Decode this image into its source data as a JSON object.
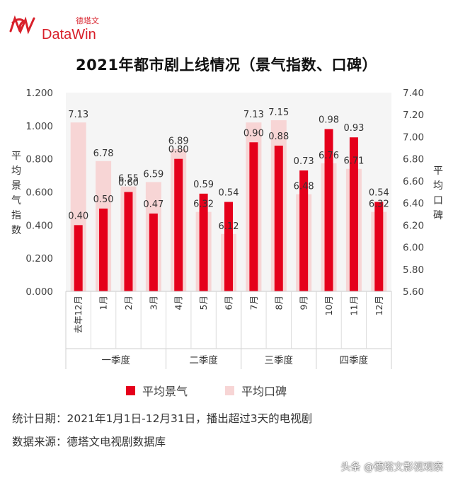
{
  "brand": {
    "cn": "德塔文",
    "en": "DataWin",
    "color": "#d8202a"
  },
  "title": "2021年都市剧上线情况（景气指数、口碑）",
  "chart_data": {
    "type": "bar",
    "categories": [
      "去年12月",
      "1月",
      "2月",
      "3月",
      "4月",
      "5月",
      "6月",
      "7月",
      "8月",
      "9月",
      "10月",
      "11月",
      "12月"
    ],
    "series": [
      {
        "name": "平均景气",
        "axis": "left",
        "color": "#e5001b",
        "values": [
          0.4,
          0.5,
          0.6,
          0.47,
          0.8,
          0.59,
          0.54,
          0.9,
          0.88,
          0.73,
          0.98,
          0.93,
          0.54
        ],
        "labels": [
          "0.40",
          "0.50",
          "0.60",
          "0.47",
          "0.80",
          "0.59",
          "0.54",
          "0.90",
          "0.88",
          "0.73",
          "0.98",
          "0.93",
          "0.54"
        ]
      },
      {
        "name": "平均口碑",
        "axis": "right",
        "color": "#f7d5d5",
        "values": [
          7.13,
          6.78,
          6.55,
          6.59,
          6.89,
          6.32,
          6.12,
          7.13,
          7.15,
          6.48,
          6.76,
          6.71,
          6.32
        ],
        "labels": [
          "7.13",
          "6.78",
          "6.55",
          "6.59",
          "6.89",
          "6.32",
          "6.12",
          "7.13",
          "7.15",
          "6.48",
          "6.76",
          "6.71",
          "6.32"
        ]
      }
    ],
    "ylim_left": [
      0,
      1.2
    ],
    "yticks_left": [
      "0.000",
      "0.200",
      "0.400",
      "0.600",
      "0.800",
      "1.000",
      "1.200"
    ],
    "ylim_right": [
      5.6,
      7.4
    ],
    "yticks_right": [
      "5.60",
      "5.80",
      "6.00",
      "6.20",
      "6.40",
      "6.60",
      "6.80",
      "7.00",
      "7.20",
      "7.40"
    ],
    "ylabel_left": "平均景气指数",
    "ylabel_right": "平均口碑",
    "groups": [
      {
        "label": "一季度",
        "span": 4
      },
      {
        "label": "二季度",
        "span": 3
      },
      {
        "label": "三季度",
        "span": 3
      },
      {
        "label": "四季度",
        "span": 3
      }
    ],
    "legend_position": "bottom",
    "background": "#f5f5f5"
  },
  "notes": [
    "统计日期：2021年1月1日-12月31日，播出超过3天的电视剧",
    "数据来源：德塔文电视剧数据库"
  ],
  "watermark": "头条 @德塔文影视观察"
}
